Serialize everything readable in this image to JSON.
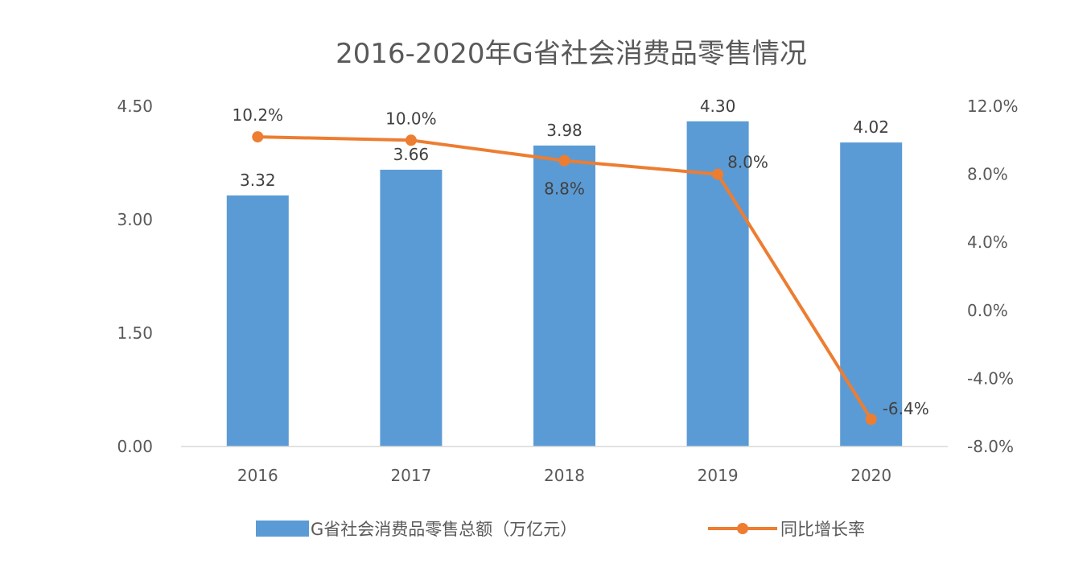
{
  "chart_data": {
    "type": "bar+line",
    "title": "2016-2020年G省社会消费品零售情况",
    "categories": [
      "2016",
      "2017",
      "2018",
      "2019",
      "2020"
    ],
    "series": [
      {
        "name": "G省社会消费品零售总额（万亿元）",
        "type": "bar",
        "axis": "left",
        "values": [
          3.32,
          3.66,
          3.98,
          4.3,
          4.02
        ],
        "labels": [
          "3.32",
          "3.66",
          "3.98",
          "4.30",
          "4.02"
        ]
      },
      {
        "name": "同比增长率",
        "type": "line",
        "axis": "right",
        "values": [
          10.2,
          10.0,
          8.8,
          8.0,
          -6.4
        ],
        "labels": [
          "10.2%",
          "10.0%",
          "8.8%",
          "8.0%",
          "-6.4%"
        ]
      }
    ],
    "y_left": {
      "min": 0,
      "max": 4.5,
      "ticks": [
        "0.00",
        "1.50",
        "3.00",
        "4.50"
      ]
    },
    "y_right": {
      "min": -8,
      "max": 12,
      "ticks": [
        "-8.0%",
        "-4.0%",
        "0.0%",
        "4.0%",
        "8.0%",
        "12.0%"
      ]
    },
    "grid": false,
    "legend_position": "bottom",
    "colors": {
      "bar": "#5B9BD5",
      "line": "#ED7D31",
      "axis": "#D9D9D9"
    }
  }
}
